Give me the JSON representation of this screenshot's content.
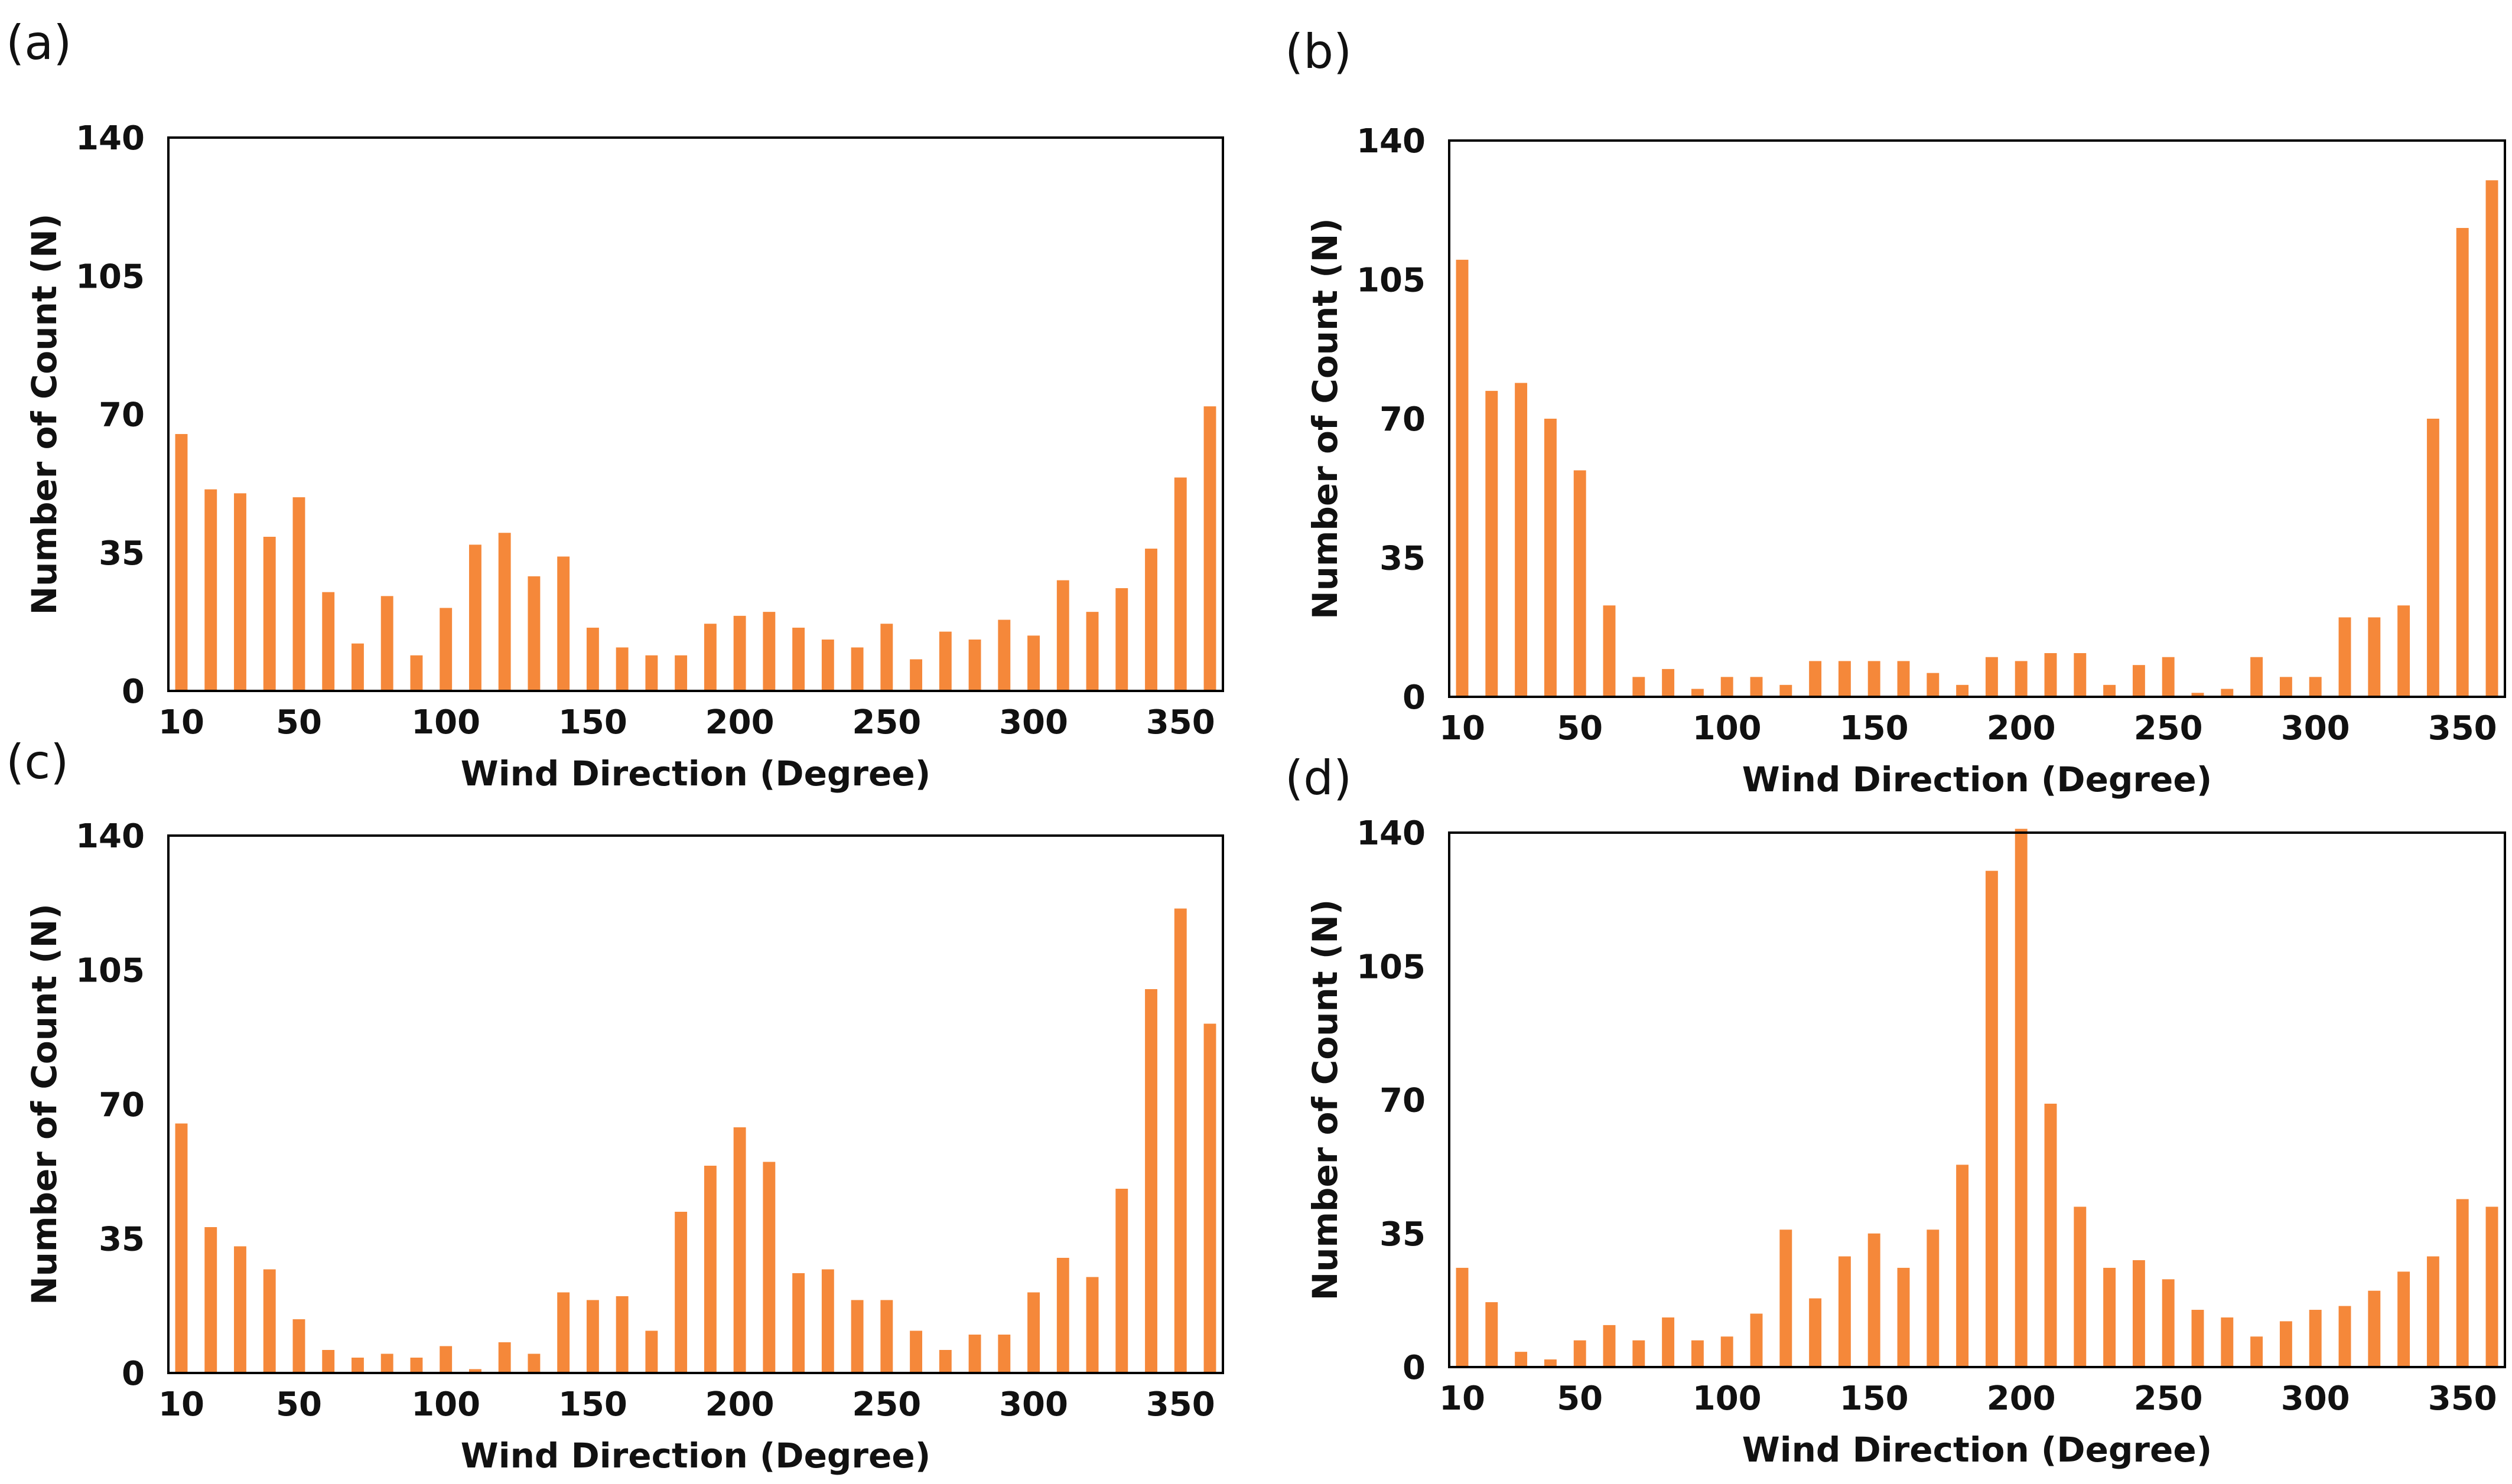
{
  "bar_color": "#F5883A",
  "chart_data": [
    {
      "type": "bar",
      "panel": "(a)",
      "xlabel": "Wind Direction (Degree)",
      "ylabel": "Number of Count (N)",
      "ylim": [
        0,
        140
      ],
      "yticks": [
        "0",
        "35",
        "70",
        "105",
        "140"
      ],
      "xticks": [
        "10",
        "50",
        "100",
        "150",
        "200",
        "250",
        "300",
        "350"
      ],
      "x": [
        10,
        20,
        30,
        40,
        50,
        60,
        70,
        80,
        90,
        100,
        110,
        120,
        130,
        140,
        150,
        160,
        170,
        180,
        190,
        200,
        210,
        220,
        230,
        240,
        250,
        260,
        270,
        280,
        290,
        300,
        310,
        320,
        330,
        340,
        350,
        360
      ],
      "values": [
        65,
        51,
        50,
        39,
        49,
        25,
        12,
        24,
        9,
        21,
        37,
        40,
        29,
        34,
        16,
        11,
        9,
        9,
        17,
        19,
        20,
        16,
        13,
        11,
        17,
        8,
        15,
        13,
        18,
        14,
        28,
        20,
        26,
        36,
        54,
        72
      ]
    },
    {
      "type": "bar",
      "panel": "(b)",
      "xlabel": "Wind Direction (Degree)",
      "ylabel": "Number of Count (N)",
      "ylim": [
        0,
        140
      ],
      "yticks": [
        "0",
        "35",
        "70",
        "105",
        "140"
      ],
      "xticks": [
        "10",
        "50",
        "100",
        "150",
        "200",
        "250",
        "300",
        "350"
      ],
      "x": [
        10,
        20,
        30,
        40,
        50,
        60,
        70,
        80,
        90,
        100,
        110,
        120,
        130,
        140,
        150,
        160,
        170,
        180,
        190,
        200,
        210,
        220,
        230,
        240,
        250,
        260,
        270,
        280,
        290,
        300,
        310,
        320,
        330,
        340,
        350,
        360
      ],
      "values": [
        110,
        77,
        79,
        70,
        57,
        23,
        5,
        7,
        2,
        5,
        5,
        3,
        9,
        9,
        9,
        9,
        6,
        3,
        10,
        9,
        11,
        11,
        3,
        8,
        10,
        1,
        2,
        10,
        5,
        5,
        20,
        20,
        23,
        70,
        118,
        130
      ]
    },
    {
      "type": "bar",
      "panel": "(c)",
      "xlabel": "Wind Direction (Degree)",
      "ylabel": "Number of Count (N)",
      "ylim": [
        0,
        140
      ],
      "yticks": [
        "0",
        "35",
        "70",
        "105",
        "140"
      ],
      "xticks": [
        "10",
        "50",
        "100",
        "150",
        "200",
        "250",
        "300",
        "350"
      ],
      "x": [
        10,
        20,
        30,
        40,
        50,
        60,
        70,
        80,
        90,
        100,
        110,
        120,
        130,
        140,
        150,
        160,
        170,
        180,
        190,
        200,
        210,
        220,
        230,
        240,
        250,
        260,
        270,
        280,
        290,
        300,
        310,
        320,
        330,
        340,
        350,
        360
      ],
      "values": [
        65,
        38,
        33,
        27,
        14,
        6,
        4,
        5,
        4,
        7,
        1,
        8,
        5,
        21,
        19,
        20,
        11,
        42,
        54,
        64,
        55,
        26,
        27,
        19,
        19,
        11,
        6,
        10,
        10,
        21,
        30,
        25,
        48,
        100,
        121,
        91
      ]
    },
    {
      "type": "bar",
      "panel": "(d)",
      "xlabel": "Wind Direction (Degree)",
      "ylabel": "Number of Count (N)",
      "ylim": [
        0,
        140
      ],
      "yticks": [
        "0",
        "35",
        "70",
        "105",
        "140"
      ],
      "xticks": [
        "10",
        "50",
        "100",
        "150",
        "200",
        "250",
        "300",
        "350"
      ],
      "x": [
        10,
        20,
        30,
        40,
        50,
        60,
        70,
        80,
        90,
        100,
        110,
        120,
        130,
        140,
        150,
        160,
        170,
        180,
        190,
        200,
        210,
        220,
        230,
        240,
        250,
        260,
        270,
        280,
        290,
        300,
        310,
        320,
        330,
        340,
        350,
        360
      ],
      "values": [
        26,
        17,
        4,
        2,
        7,
        11,
        7,
        13,
        7,
        8,
        14,
        36,
        18,
        29,
        35,
        26,
        36,
        53,
        130,
        141,
        69,
        42,
        26,
        28,
        23,
        15,
        13,
        8,
        12,
        15,
        16,
        20,
        25,
        29,
        44,
        42
      ]
    }
  ]
}
